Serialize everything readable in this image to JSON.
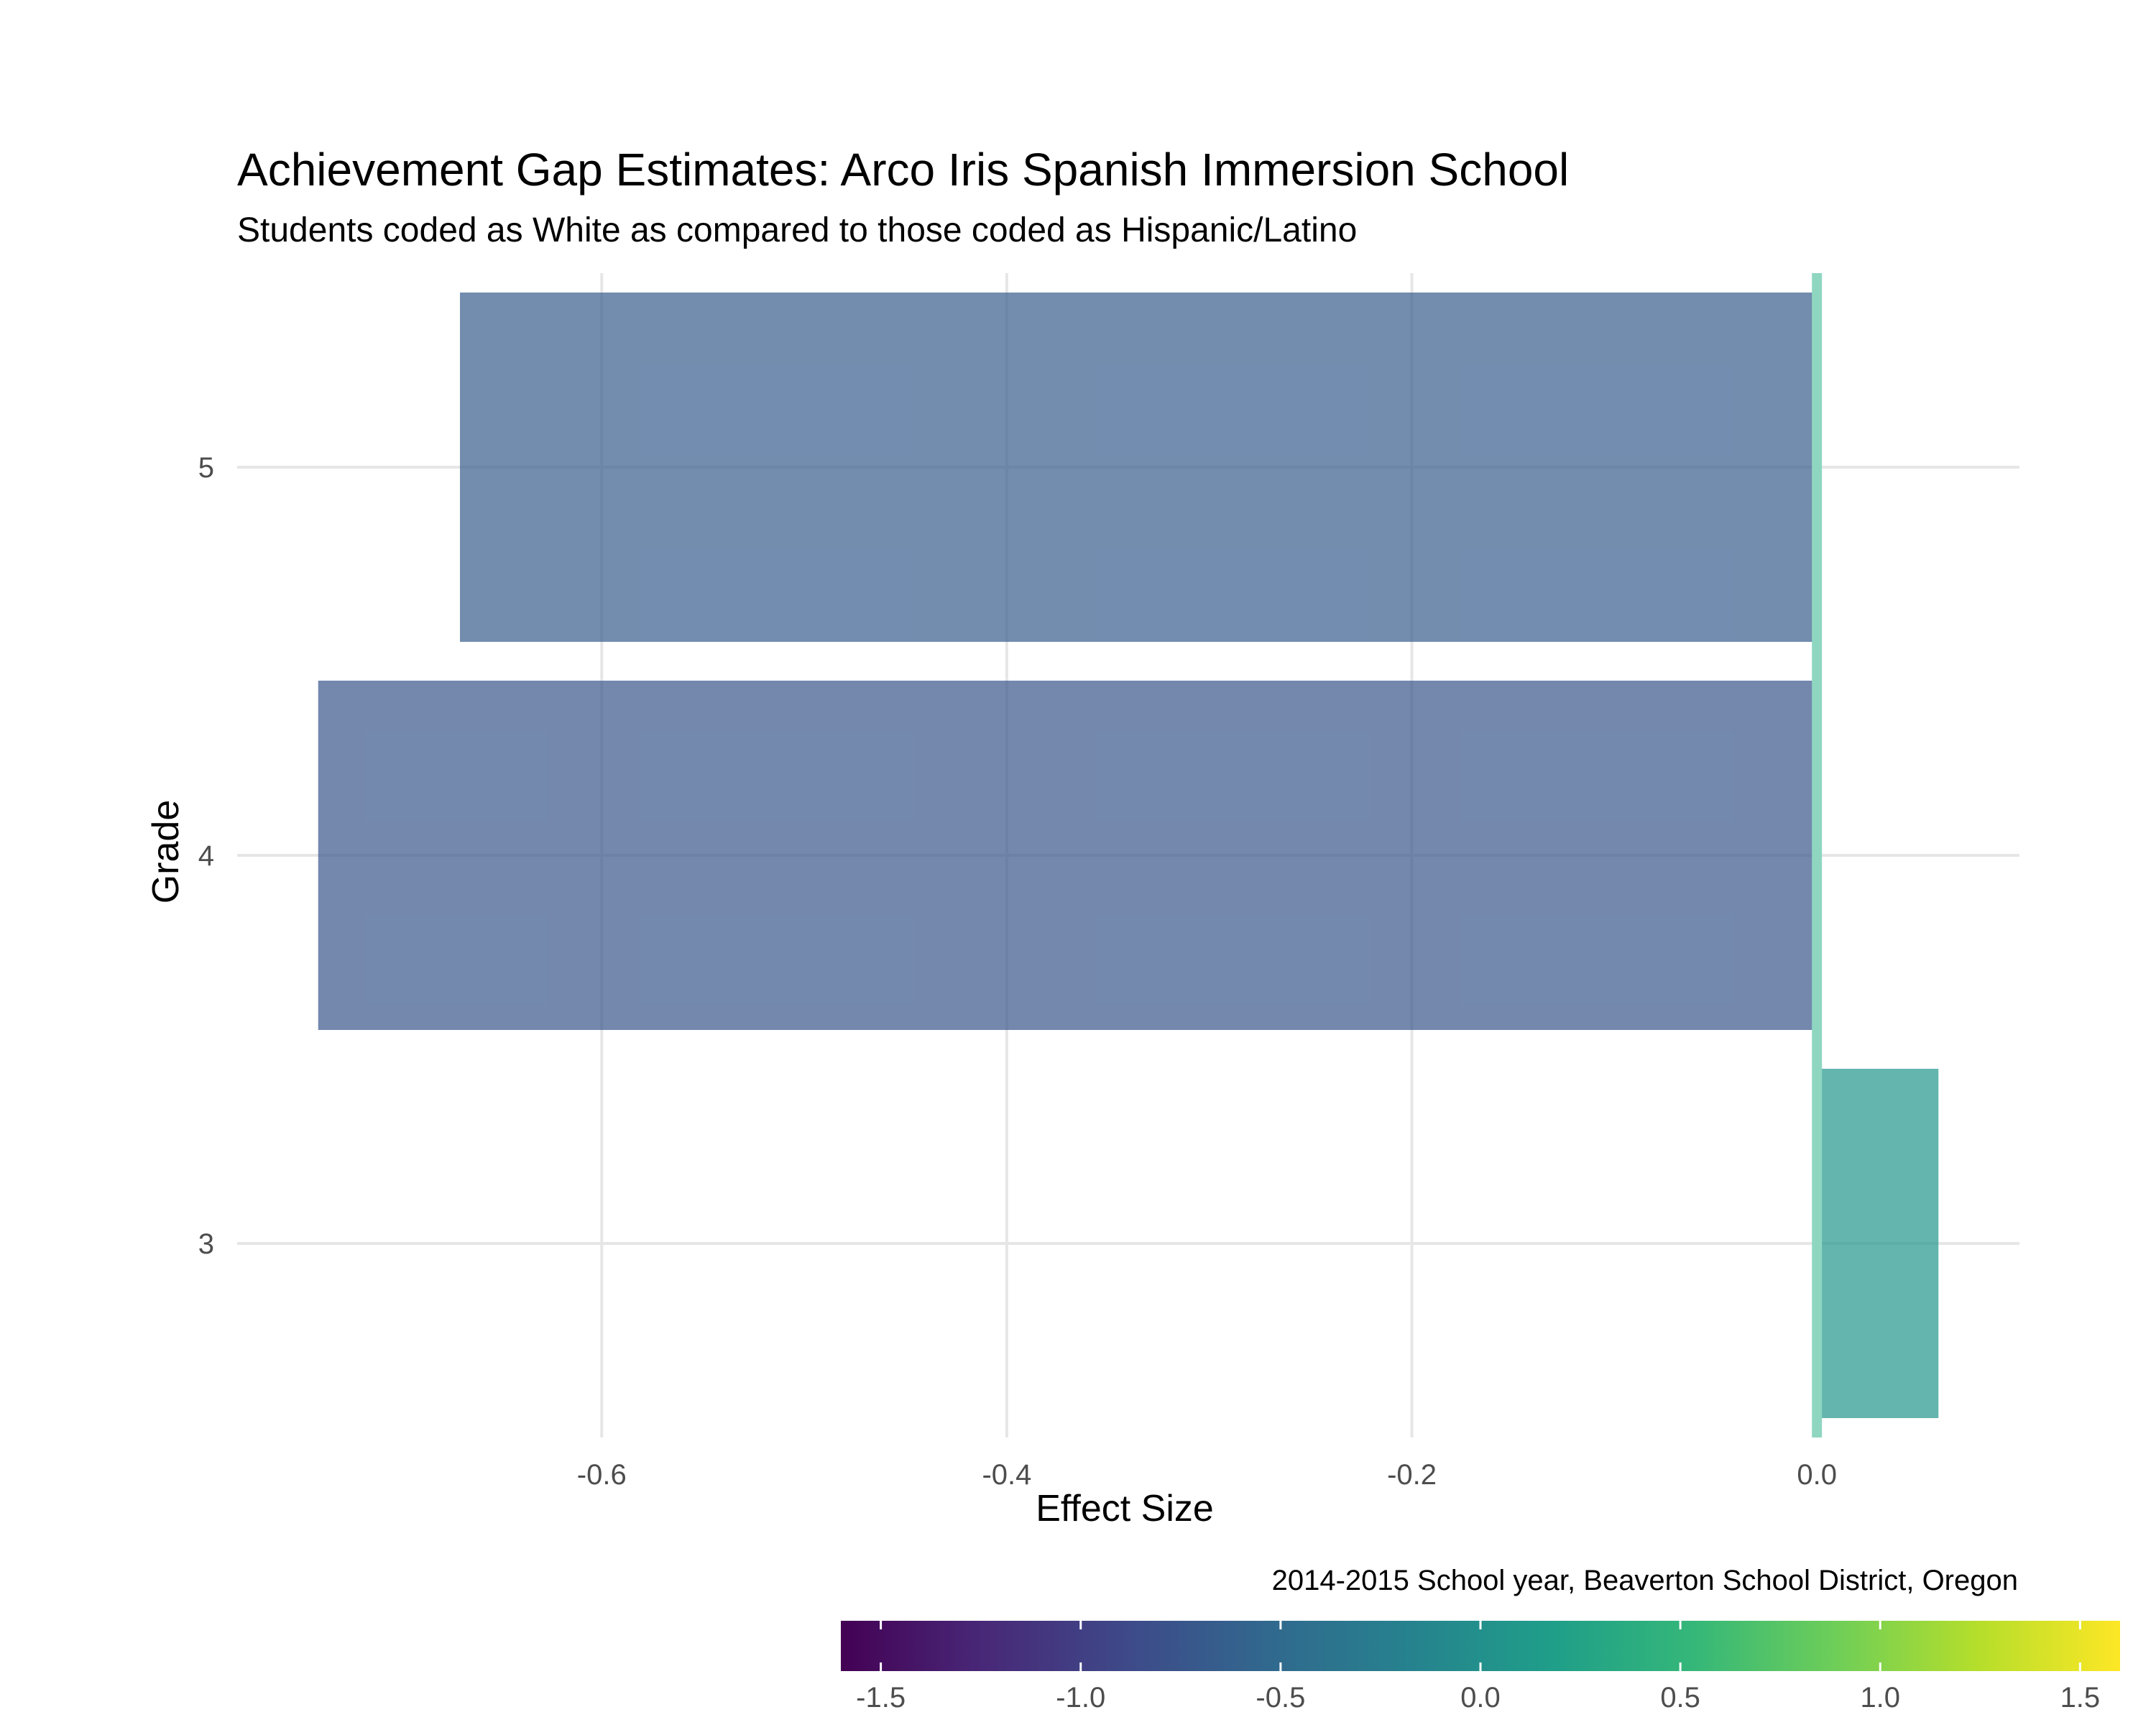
{
  "chart_data": {
    "type": "bar",
    "orientation": "horizontal",
    "title": "Achievement Gap Estimates: Arco Iris Spanish Immersion School",
    "subtitle": "Students coded as White as compared to those coded as Hispanic/Latino",
    "xlabel": "Effect Size",
    "ylabel": "Grade",
    "caption": "2014-2015 School year, Beaverton School District, Oregon",
    "categories": [
      "3",
      "4",
      "5"
    ],
    "values": [
      0.06,
      -0.74,
      -0.67
    ],
    "xlim": [
      -0.78,
      0.1
    ],
    "xticks": [
      -0.6,
      -0.4,
      -0.2,
      0.0
    ],
    "xtick_labels": [
      "-0.6",
      "-0.4",
      "-0.2",
      "0.0"
    ],
    "reference_line": {
      "x": 0.0,
      "color": "#8fd6c1"
    },
    "grid": true,
    "bar_opacity": 0.7,
    "legend": {
      "type": "colorbar",
      "position": "bottom-right",
      "range": [
        -1.6,
        1.6
      ],
      "ticks": [
        -1.5,
        -1.0,
        -0.5,
        0.0,
        0.5,
        1.0,
        1.5
      ],
      "tick_labels": [
        "-1.5",
        "-1.0",
        "-0.5",
        "0.0",
        "0.5",
        "1.0",
        "1.5"
      ],
      "colormap": "viridis",
      "colors": [
        "#440154",
        "#482878",
        "#3e4989",
        "#31688e",
        "#26828e",
        "#1f9e89",
        "#35b779",
        "#6ece58",
        "#b5de2b",
        "#fde725"
      ]
    }
  }
}
